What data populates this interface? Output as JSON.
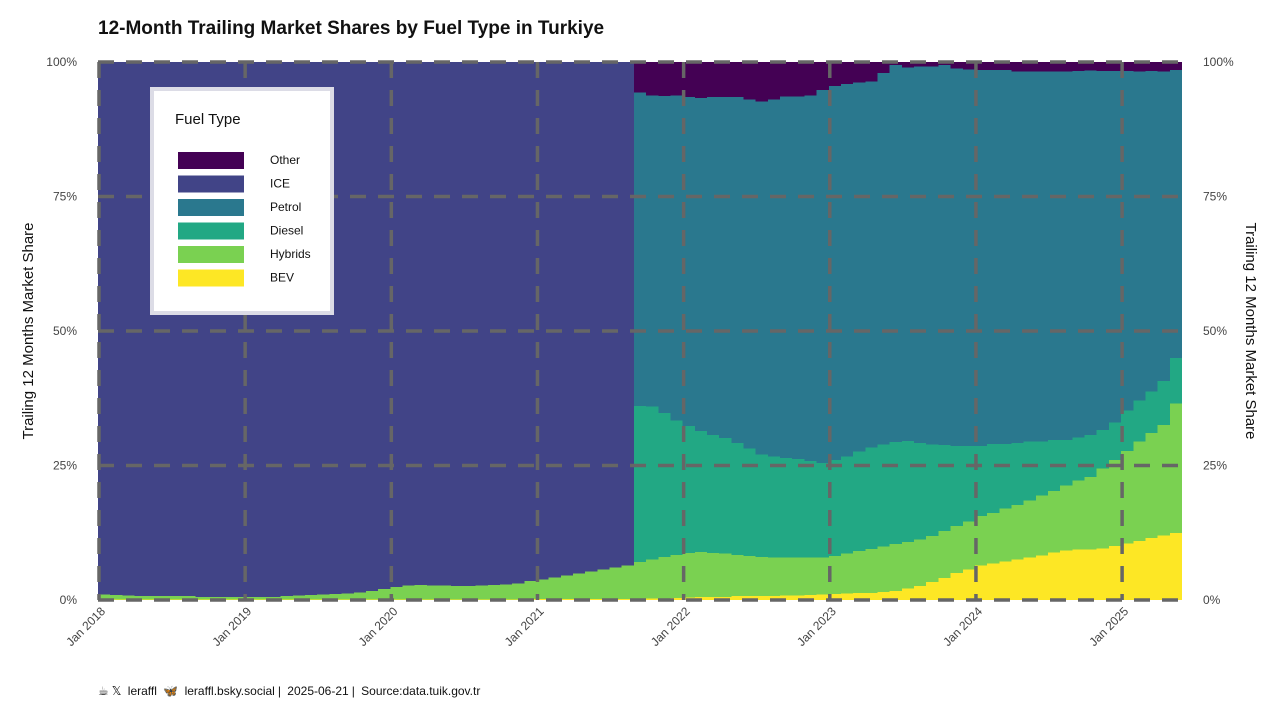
{
  "chart_data": {
    "type": "area",
    "title": "12-Month Trailing Market Shares by Fuel Type in Turkiye",
    "ylabel": "Trailing 12 Months Market Share",
    "ylabel_right": "Trailing 12 Months Market Share",
    "ylim": [
      0,
      1
    ],
    "yticks": [
      0,
      0.25,
      0.5,
      0.75,
      1.0
    ],
    "yticklabels": [
      "0%",
      "25%",
      "50%",
      "75%",
      "100%"
    ],
    "x_start": "2018-01",
    "x_end": "2025-05",
    "xtick_labels": [
      "Jan 2018",
      "Jan 2019",
      "Jan 2020",
      "Jan 2021",
      "Jan 2022",
      "Jan 2023",
      "Jan 2024",
      "Jan 2025"
    ],
    "legend": {
      "title": "Fuel Type",
      "position": "top-left",
      "entries": [
        "Other",
        "ICE",
        "Petrol",
        "Diesel",
        "Hybrids",
        "BEV"
      ]
    },
    "colors": {
      "Other": "#440154",
      "ICE": "#414487",
      "Petrol": "#2a788e",
      "Diesel": "#22a884",
      "Hybrids": "#7ad151",
      "BEV": "#fde725"
    },
    "grid": "major dashed",
    "periods": {
      "aggregate": {
        "from": "2018-01",
        "to": "2021-08",
        "note": "only ICE vs electrified shares reported",
        "BEV": [
          0.001,
          0.001,
          0.001,
          0.001,
          0.001,
          0.001,
          0.001,
          0.001,
          0.001,
          0.001,
          0.001,
          0.001,
          0.001,
          0.001,
          0.001,
          0.001,
          0.001,
          0.001,
          0.001,
          0.001,
          0.001,
          0.001,
          0.001,
          0.001,
          0.001,
          0.001,
          0.001,
          0.001,
          0.001,
          0.001,
          0.001,
          0.001,
          0.001,
          0.001,
          0.001,
          0.002,
          0.002,
          0.002,
          0.002,
          0.002,
          0.002,
          0.002,
          0.002,
          0.002
        ],
        "Hybrids": [
          0.009,
          0.008,
          0.007,
          0.006,
          0.006,
          0.006,
          0.006,
          0.006,
          0.005,
          0.005,
          0.005,
          0.005,
          0.005,
          0.005,
          0.005,
          0.006,
          0.007,
          0.008,
          0.009,
          0.01,
          0.011,
          0.013,
          0.016,
          0.019,
          0.023,
          0.026,
          0.027,
          0.026,
          0.026,
          0.025,
          0.025,
          0.026,
          0.027,
          0.028,
          0.03,
          0.033,
          0.036,
          0.04,
          0.044,
          0.047,
          0.051,
          0.055,
          0.058,
          0.062
        ]
      },
      "detailed": {
        "from": "2021-09",
        "to": "2025-05",
        "BEV": [
          0.003,
          0.003,
          0.003,
          0.004,
          0.005,
          0.006,
          0.006,
          0.006,
          0.007,
          0.007,
          0.007,
          0.007,
          0.008,
          0.008,
          0.009,
          0.01,
          0.011,
          0.012,
          0.013,
          0.013,
          0.015,
          0.017,
          0.021,
          0.026,
          0.033,
          0.041,
          0.05,
          0.057,
          0.064,
          0.068,
          0.072,
          0.075,
          0.079,
          0.083,
          0.088,
          0.092,
          0.094,
          0.094,
          0.096,
          0.1,
          0.105,
          0.11,
          0.115,
          0.12,
          0.125
        ],
        "Hybrids": [
          0.068,
          0.072,
          0.077,
          0.08,
          0.082,
          0.083,
          0.081,
          0.08,
          0.077,
          0.075,
          0.073,
          0.072,
          0.071,
          0.071,
          0.07,
          0.069,
          0.071,
          0.074,
          0.078,
          0.082,
          0.084,
          0.087,
          0.087,
          0.086,
          0.086,
          0.087,
          0.088,
          0.089,
          0.092,
          0.094,
          0.098,
          0.102,
          0.106,
          0.111,
          0.115,
          0.121,
          0.128,
          0.135,
          0.148,
          0.16,
          0.172,
          0.185,
          0.195,
          0.205,
          0.24
        ],
        "Diesel": [
          0.29,
          0.285,
          0.268,
          0.25,
          0.236,
          0.225,
          0.22,
          0.215,
          0.208,
          0.2,
          0.19,
          0.188,
          0.185,
          0.183,
          0.179,
          0.176,
          0.178,
          0.181,
          0.185,
          0.188,
          0.19,
          0.19,
          0.188,
          0.18,
          0.17,
          0.16,
          0.148,
          0.14,
          0.13,
          0.128,
          0.12,
          0.115,
          0.11,
          0.101,
          0.094,
          0.084,
          0.08,
          0.078,
          0.072,
          0.07,
          0.075,
          0.076,
          0.078,
          0.082,
          0.085
        ],
        "Petrol": [
          0.582,
          0.578,
          0.589,
          0.604,
          0.612,
          0.619,
          0.628,
          0.634,
          0.643,
          0.648,
          0.657,
          0.663,
          0.672,
          0.674,
          0.68,
          0.693,
          0.695,
          0.692,
          0.686,
          0.681,
          0.691,
          0.7,
          0.694,
          0.7,
          0.703,
          0.706,
          0.702,
          0.7,
          0.699,
          0.695,
          0.695,
          0.69,
          0.687,
          0.687,
          0.685,
          0.685,
          0.681,
          0.677,
          0.667,
          0.653,
          0.631,
          0.611,
          0.595,
          0.575,
          0.535
        ],
        "Other": [
          0.057,
          0.062,
          0.063,
          0.062,
          0.065,
          0.067,
          0.065,
          0.065,
          0.065,
          0.07,
          0.073,
          0.07,
          0.064,
          0.064,
          0.062,
          0.052,
          0.045,
          0.041,
          0.038,
          0.036,
          0.02,
          0.006,
          0.01,
          0.008,
          0.008,
          0.006,
          0.012,
          0.014,
          0.015,
          0.015,
          0.015,
          0.018,
          0.018,
          0.018,
          0.018,
          0.018,
          0.017,
          0.016,
          0.017,
          0.017,
          0.017,
          0.018,
          0.017,
          0.018,
          0.015
        ]
      }
    }
  },
  "caption": {
    "handle": "leraffl",
    "bluesky": "leraffl.bsky.social",
    "date": "2025-06-21",
    "source": "Source:data.tuik.gov.tr"
  }
}
